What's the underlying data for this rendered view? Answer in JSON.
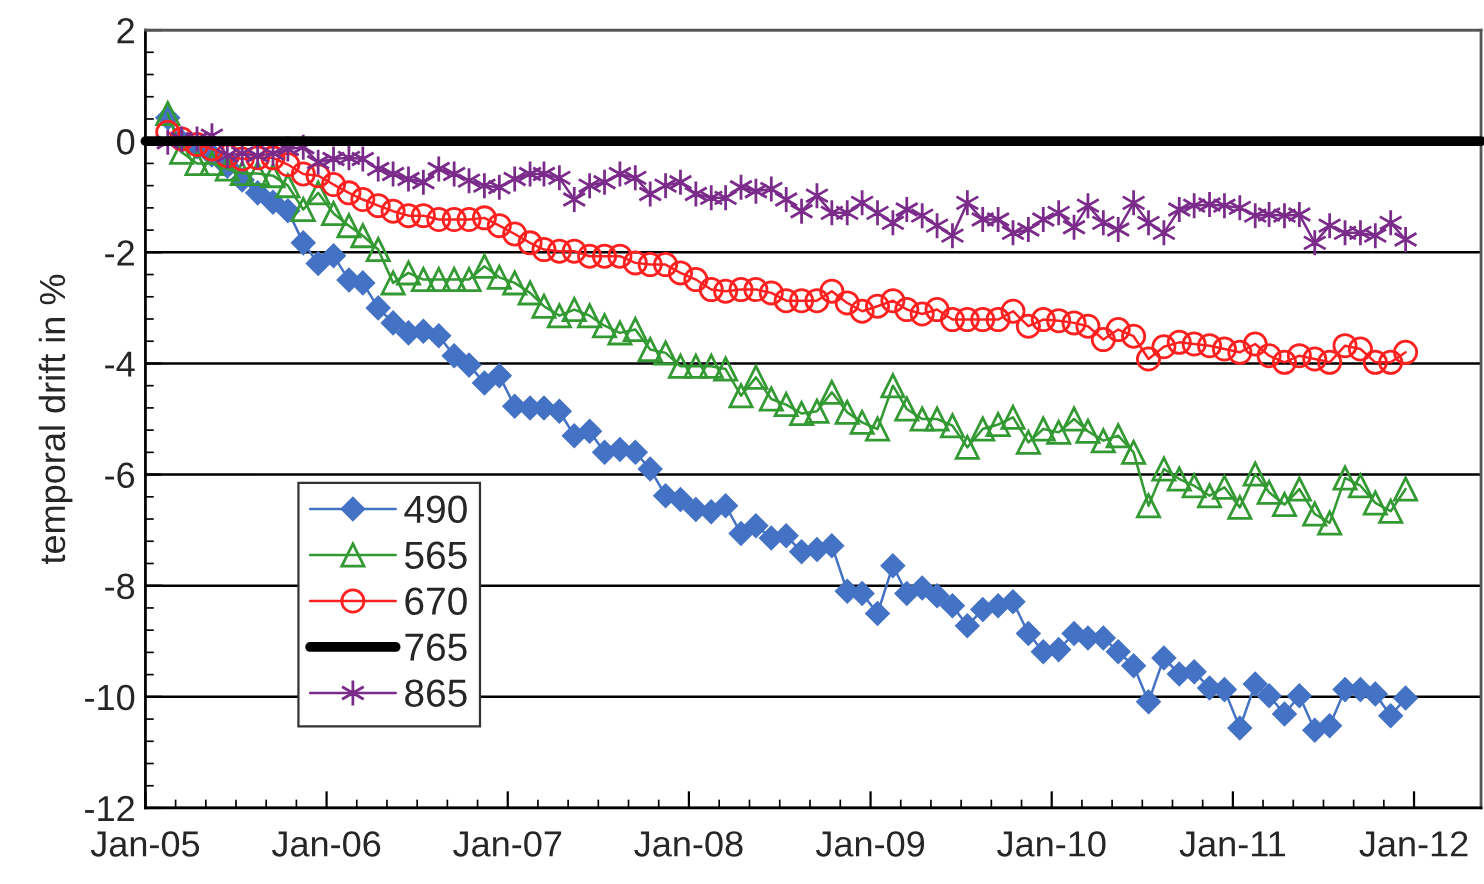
{
  "chart_data": {
    "type": "line",
    "ylabel": "temporal drift in %",
    "x": [
      "2005-02-15",
      "2005-03-15",
      "2005-04-15",
      "2005-05-15",
      "2005-06-15",
      "2005-07-15",
      "2005-08-15",
      "2005-09-15",
      "2005-10-15",
      "2005-11-15",
      "2005-12-15",
      "2006-01-15",
      "2006-02-15",
      "2006-03-15",
      "2006-04-15",
      "2006-05-15",
      "2006-06-15",
      "2006-07-15",
      "2006-08-15",
      "2006-09-15",
      "2006-10-15",
      "2006-11-15",
      "2006-12-15",
      "2007-01-15",
      "2007-02-15",
      "2007-03-15",
      "2007-04-15",
      "2007-05-15",
      "2007-06-15",
      "2007-07-15",
      "2007-08-15",
      "2007-09-15",
      "2007-10-15",
      "2007-11-15",
      "2007-12-15",
      "2008-01-15",
      "2008-02-15",
      "2008-03-15",
      "2008-04-15",
      "2008-05-15",
      "2008-06-15",
      "2008-07-15",
      "2008-08-15",
      "2008-09-15",
      "2008-10-15",
      "2008-11-15",
      "2008-12-15",
      "2009-01-15",
      "2009-02-15",
      "2009-03-15",
      "2009-04-15",
      "2009-05-15",
      "2009-06-15",
      "2009-07-15",
      "2009-08-15",
      "2009-09-15",
      "2009-10-15",
      "2009-11-15",
      "2009-12-15",
      "2010-01-15",
      "2010-02-15",
      "2010-03-15",
      "2010-04-15",
      "2010-05-15",
      "2010-06-15",
      "2010-07-15",
      "2010-08-15",
      "2010-09-15",
      "2010-10-15",
      "2010-11-15",
      "2010-12-15",
      "2011-01-15",
      "2011-02-15",
      "2011-03-15",
      "2011-04-15",
      "2011-05-15",
      "2011-06-15",
      "2011-07-15",
      "2011-08-15",
      "2011-09-15",
      "2011-10-15",
      "2011-11-15",
      "2011-12-15"
    ],
    "series": [
      {
        "name": "490",
        "color": "#4472c4",
        "marker": "diamond",
        "values": [
          0.42,
          0.0,
          -0.1,
          -0.25,
          -0.45,
          -0.7,
          -0.93,
          -1.1,
          -1.25,
          -1.83,
          -2.2,
          -2.06,
          -2.5,
          -2.55,
          -3.0,
          -3.27,
          -3.45,
          -3.42,
          -3.5,
          -3.86,
          -4.03,
          -4.35,
          -4.22,
          -4.77,
          -4.8,
          -4.8,
          -4.86,
          -5.3,
          -5.22,
          -5.6,
          -5.55,
          -5.6,
          -5.9,
          -6.38,
          -6.45,
          -6.63,
          -6.67,
          -6.56,
          -7.06,
          -6.92,
          -7.14,
          -7.1,
          -7.39,
          -7.35,
          -7.28,
          -8.1,
          -8.14,
          -8.5,
          -7.64,
          -8.14,
          -8.04,
          -8.18,
          -8.36,
          -8.72,
          -8.43,
          -8.36,
          -8.29,
          -8.86,
          -9.19,
          -9.15,
          -8.86,
          -8.94,
          -8.94,
          -9.19,
          -9.44,
          -10.09,
          -9.3,
          -9.59,
          -9.55,
          -9.84,
          -9.87,
          -10.56,
          -9.77,
          -9.98,
          -10.31,
          -9.98,
          -10.6,
          -10.52,
          -9.87,
          -9.87,
          -9.95,
          -10.34,
          -10.02
        ]
      },
      {
        "name": "565",
        "color": "#339933",
        "marker": "triangle",
        "values": [
          0.5,
          -0.2,
          -0.4,
          -0.4,
          -0.5,
          -0.58,
          -0.58,
          -0.62,
          -0.8,
          -1.23,
          -0.93,
          -1.3,
          -1.52,
          -1.7,
          -1.95,
          -2.55,
          -2.37,
          -2.49,
          -2.49,
          -2.49,
          -2.49,
          -2.25,
          -2.45,
          -2.55,
          -2.73,
          -2.97,
          -3.14,
          -3.03,
          -3.14,
          -3.32,
          -3.45,
          -3.39,
          -3.75,
          -3.81,
          -4.05,
          -4.05,
          -4.05,
          -4.1,
          -4.58,
          -4.25,
          -4.64,
          -4.74,
          -4.9,
          -4.86,
          -4.52,
          -4.88,
          -5.06,
          -5.18,
          -4.4,
          -4.82,
          -5.0,
          -5.0,
          -5.12,
          -5.51,
          -5.18,
          -5.1,
          -4.97,
          -5.42,
          -5.18,
          -5.24,
          -5.0,
          -5.22,
          -5.39,
          -5.3,
          -5.6,
          -6.56,
          -5.9,
          -6.08,
          -6.2,
          -6.38,
          -6.23,
          -6.59,
          -5.99,
          -6.32,
          -6.54,
          -6.26,
          -6.71,
          -6.87,
          -6.06,
          -6.2,
          -6.51,
          -6.66,
          -6.26
        ]
      },
      {
        "name": "670",
        "color": "#ff2020",
        "marker": "circle",
        "values": [
          0.16,
          0.04,
          -0.06,
          -0.14,
          -0.26,
          -0.32,
          -0.3,
          -0.3,
          -0.42,
          -0.59,
          -0.62,
          -0.78,
          -0.93,
          -1.05,
          -1.16,
          -1.26,
          -1.34,
          -1.34,
          -1.41,
          -1.41,
          -1.41,
          -1.38,
          -1.52,
          -1.67,
          -1.83,
          -1.95,
          -1.98,
          -1.98,
          -2.07,
          -2.07,
          -2.07,
          -2.19,
          -2.22,
          -2.22,
          -2.37,
          -2.49,
          -2.67,
          -2.7,
          -2.67,
          -2.67,
          -2.73,
          -2.87,
          -2.87,
          -2.87,
          -2.7,
          -2.91,
          -3.06,
          -2.97,
          -2.87,
          -3.03,
          -3.11,
          -3.03,
          -3.21,
          -3.21,
          -3.21,
          -3.21,
          -3.06,
          -3.33,
          -3.21,
          -3.23,
          -3.27,
          -3.33,
          -3.57,
          -3.39,
          -3.51,
          -3.92,
          -3.7,
          -3.62,
          -3.65,
          -3.68,
          -3.74,
          -3.8,
          -3.65,
          -3.86,
          -3.98,
          -3.86,
          -3.92,
          -3.98,
          -3.68,
          -3.74,
          -3.98,
          -3.98,
          -3.8
        ]
      },
      {
        "name": "765",
        "color": "#000000",
        "marker": "none",
        "x": [
          "2005-01-01",
          "2012-05-15"
        ],
        "values": [
          0,
          0
        ]
      },
      {
        "name": "865",
        "color": "#7b2c8b",
        "marker": "cross",
        "values": [
          -0.02,
          0.04,
          0.04,
          0.1,
          -0.26,
          -0.22,
          -0.26,
          -0.22,
          -0.14,
          -0.11,
          -0.38,
          -0.32,
          -0.3,
          -0.32,
          -0.5,
          -0.59,
          -0.68,
          -0.74,
          -0.5,
          -0.59,
          -0.71,
          -0.8,
          -0.83,
          -0.68,
          -0.59,
          -0.59,
          -0.66,
          -1.05,
          -0.8,
          -0.74,
          -0.59,
          -0.66,
          -0.95,
          -0.8,
          -0.74,
          -0.95,
          -1.02,
          -1.02,
          -0.83,
          -0.9,
          -0.86,
          -1.05,
          -1.26,
          -0.98,
          -1.29,
          -1.29,
          -1.11,
          -1.29,
          -1.47,
          -1.23,
          -1.34,
          -1.52,
          -1.7,
          -1.11,
          -1.41,
          -1.41,
          -1.65,
          -1.59,
          -1.41,
          -1.29,
          -1.55,
          -1.16,
          -1.47,
          -1.59,
          -1.11,
          -1.47,
          -1.65,
          -1.23,
          -1.16,
          -1.14,
          -1.16,
          -1.2,
          -1.34,
          -1.32,
          -1.34,
          -1.32,
          -1.83,
          -1.52,
          -1.65,
          -1.65,
          -1.7,
          -1.47,
          -1.77
        ]
      }
    ],
    "xlim": [
      "2005-01-01",
      "2012-05-15"
    ],
    "xticks": [
      {
        "value": "2005-01-01",
        "label": "Jan-05"
      },
      {
        "value": "2006-01-01",
        "label": "Jan-06"
      },
      {
        "value": "2007-01-01",
        "label": "Jan-07"
      },
      {
        "value": "2008-01-01",
        "label": "Jan-08"
      },
      {
        "value": "2009-01-01",
        "label": "Jan-09"
      },
      {
        "value": "2010-01-01",
        "label": "Jan-10"
      },
      {
        "value": "2011-01-01",
        "label": "Jan-11"
      },
      {
        "value": "2012-01-01",
        "label": "Jan-12"
      }
    ],
    "ylim": [
      -12,
      2
    ],
    "yticks": [
      -12,
      -10,
      -8,
      -6,
      -4,
      -2,
      0,
      2
    ],
    "grid": "y",
    "legend": "lower left"
  }
}
